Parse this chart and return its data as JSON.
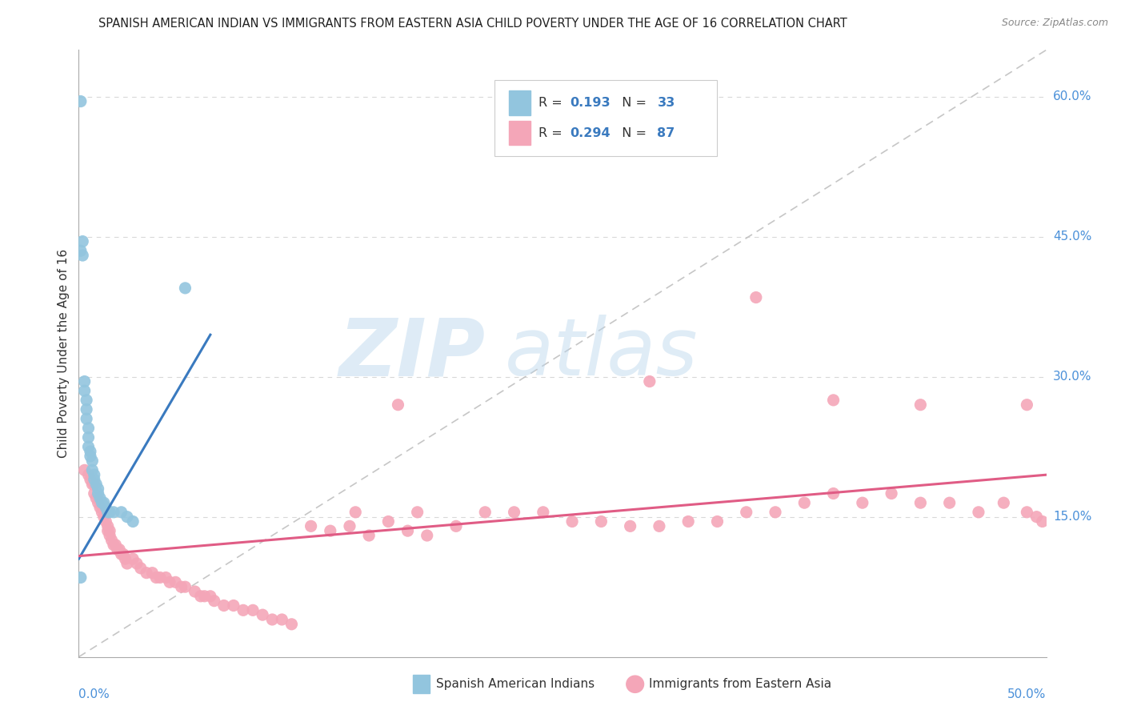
{
  "title": "SPANISH AMERICAN INDIAN VS IMMIGRANTS FROM EASTERN ASIA CHILD POVERTY UNDER THE AGE OF 16 CORRELATION CHART",
  "source": "Source: ZipAtlas.com",
  "ylabel": "Child Poverty Under the Age of 16",
  "ylabel_right_ticks": [
    "60.0%",
    "45.0%",
    "30.0%",
    "15.0%"
  ],
  "ylabel_right_vals": [
    0.6,
    0.45,
    0.3,
    0.15
  ],
  "xlim": [
    0.0,
    0.5
  ],
  "ylim": [
    0.0,
    0.65
  ],
  "blue_color": "#92c5de",
  "pink_color": "#f4a6b8",
  "line_blue": "#3a7abf",
  "line_pink": "#e05c85",
  "line_dashed_color": "#c0c0c0",
  "blue_line_x": [
    0.0,
    0.068
  ],
  "blue_line_y": [
    0.105,
    0.345
  ],
  "pink_line_x": [
    0.0,
    0.5
  ],
  "pink_line_y": [
    0.108,
    0.195
  ],
  "blue_scatter_x": [
    0.001,
    0.001,
    0.002,
    0.002,
    0.003,
    0.003,
    0.004,
    0.004,
    0.004,
    0.005,
    0.005,
    0.005,
    0.006,
    0.006,
    0.007,
    0.007,
    0.008,
    0.008,
    0.009,
    0.01,
    0.01,
    0.011,
    0.012,
    0.013,
    0.014,
    0.015,
    0.016,
    0.018,
    0.022,
    0.025,
    0.028,
    0.055,
    0.001
  ],
  "blue_scatter_y": [
    0.595,
    0.435,
    0.445,
    0.43,
    0.295,
    0.285,
    0.275,
    0.265,
    0.255,
    0.245,
    0.235,
    0.225,
    0.22,
    0.215,
    0.21,
    0.2,
    0.195,
    0.19,
    0.185,
    0.18,
    0.175,
    0.17,
    0.165,
    0.165,
    0.16,
    0.155,
    0.155,
    0.155,
    0.155,
    0.15,
    0.145,
    0.395,
    0.085
  ],
  "pink_scatter_x": [
    0.003,
    0.005,
    0.006,
    0.007,
    0.008,
    0.008,
    0.009,
    0.01,
    0.011,
    0.012,
    0.013,
    0.014,
    0.015,
    0.015,
    0.016,
    0.016,
    0.017,
    0.018,
    0.019,
    0.02,
    0.021,
    0.022,
    0.023,
    0.024,
    0.025,
    0.028,
    0.03,
    0.032,
    0.035,
    0.038,
    0.04,
    0.042,
    0.045,
    0.047,
    0.05,
    0.053,
    0.055,
    0.06,
    0.063,
    0.065,
    0.068,
    0.07,
    0.075,
    0.08,
    0.085,
    0.09,
    0.095,
    0.1,
    0.105,
    0.11,
    0.12,
    0.13,
    0.14,
    0.15,
    0.16,
    0.17,
    0.18,
    0.195,
    0.21,
    0.225,
    0.24,
    0.255,
    0.27,
    0.285,
    0.3,
    0.315,
    0.33,
    0.345,
    0.36,
    0.375,
    0.39,
    0.405,
    0.42,
    0.435,
    0.45,
    0.465,
    0.478,
    0.49,
    0.495,
    0.498,
    0.143,
    0.165,
    0.175,
    0.295,
    0.35,
    0.39,
    0.435,
    0.49
  ],
  "pink_scatter_y": [
    0.2,
    0.195,
    0.19,
    0.185,
    0.185,
    0.175,
    0.17,
    0.165,
    0.16,
    0.155,
    0.15,
    0.145,
    0.14,
    0.135,
    0.135,
    0.13,
    0.125,
    0.12,
    0.12,
    0.115,
    0.115,
    0.11,
    0.11,
    0.105,
    0.1,
    0.105,
    0.1,
    0.095,
    0.09,
    0.09,
    0.085,
    0.085,
    0.085,
    0.08,
    0.08,
    0.075,
    0.075,
    0.07,
    0.065,
    0.065,
    0.065,
    0.06,
    0.055,
    0.055,
    0.05,
    0.05,
    0.045,
    0.04,
    0.04,
    0.035,
    0.14,
    0.135,
    0.14,
    0.13,
    0.145,
    0.135,
    0.13,
    0.14,
    0.155,
    0.155,
    0.155,
    0.145,
    0.145,
    0.14,
    0.14,
    0.145,
    0.145,
    0.155,
    0.155,
    0.165,
    0.175,
    0.165,
    0.175,
    0.165,
    0.165,
    0.155,
    0.165,
    0.155,
    0.15,
    0.145,
    0.155,
    0.27,
    0.155,
    0.295,
    0.385,
    0.275,
    0.27,
    0.27
  ]
}
